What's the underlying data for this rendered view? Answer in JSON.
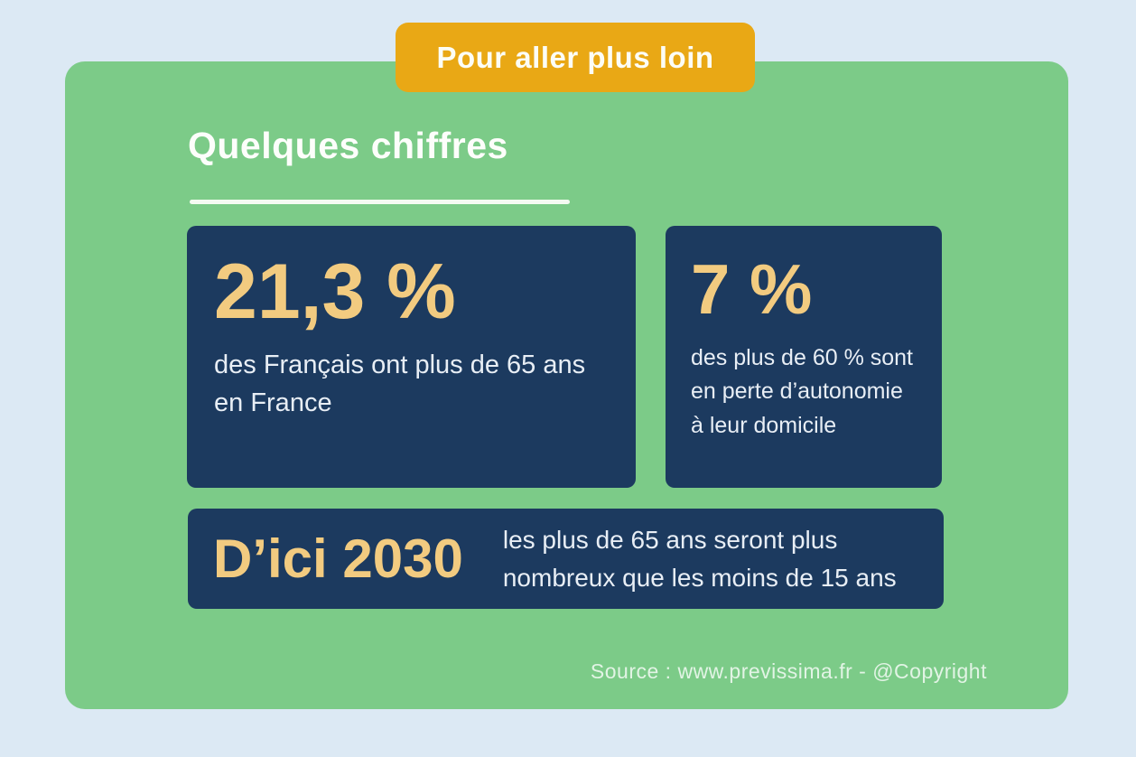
{
  "badge": {
    "label": "Pour aller plus loin"
  },
  "section": {
    "title": "Quelques chiffres"
  },
  "stats": [
    {
      "value": "21,3 %",
      "description": "des Français ont plus de 65 ans en France"
    },
    {
      "value": "7 %",
      "description": "des plus de 60 % sont en perte d’autonomie à leur domicile"
    },
    {
      "value": "D’ici 2030",
      "description": "les plus de 65 ans seront plus nombreux que les moins de 15 ans"
    }
  ],
  "footer": {
    "source": "Source : www.previssima.fr - @Copyright"
  },
  "colors": {
    "page_background": "#DCE9F4",
    "panel_green": "#7CCB88",
    "badge_gold": "#E9A815",
    "card_navy": "#1C3A5F",
    "accent_gold": "#F2CB80",
    "text_white": "#E8EEF5"
  }
}
